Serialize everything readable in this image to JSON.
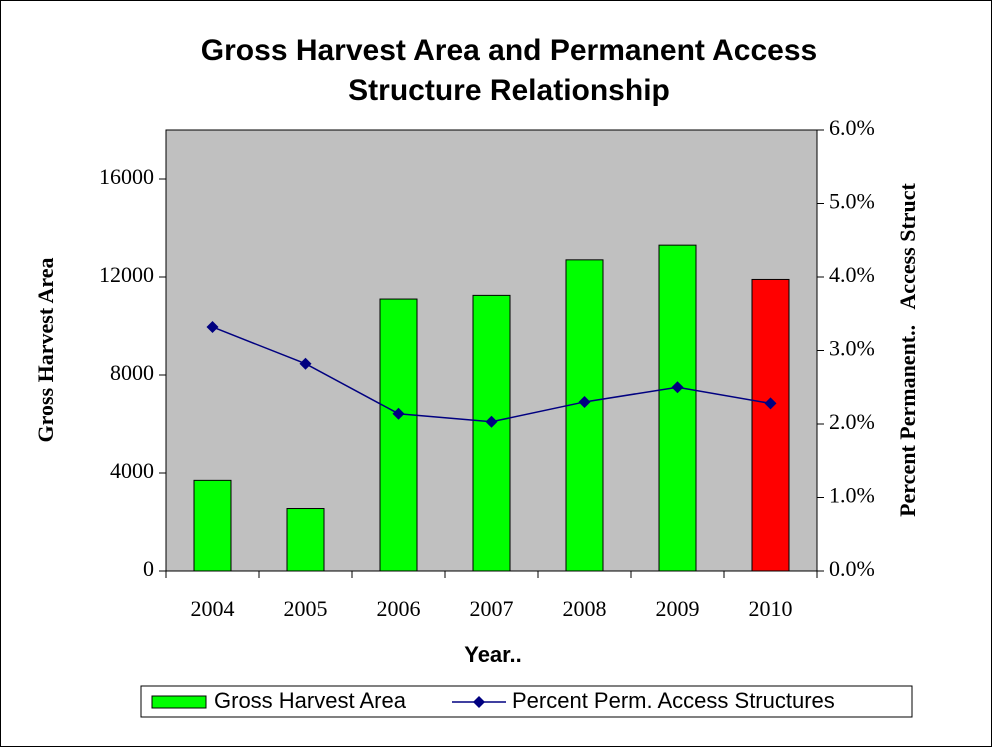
{
  "chart_data": {
    "type": "bar-line",
    "title": [
      "Gross Harvest Area and Permanent Access",
      "Structure Relationship"
    ],
    "x_label": "Year..",
    "y_label": "Gross Harvest Area",
    "y2_label": "Percent Permanent..   Access Struct",
    "categories": [
      "2004",
      "2005",
      "2006",
      "2007",
      "2008",
      "2009",
      "2010"
    ],
    "series": [
      {
        "name": "Gross Harvest Area",
        "type": "bar",
        "axis": "y",
        "colors": [
          "#00ff00",
          "#00ff00",
          "#00ff00",
          "#00ff00",
          "#00ff00",
          "#00ff00",
          "#ff0000"
        ],
        "values": [
          3700,
          2550,
          11100,
          11250,
          12700,
          13300,
          11900
        ]
      },
      {
        "name": "Percent Perm. Access Structures",
        "type": "line",
        "axis": "y2",
        "color": "#000080",
        "values": [
          3.32,
          2.82,
          2.14,
          2.03,
          2.3,
          2.5,
          2.28
        ]
      }
    ],
    "ylim": [
      0,
      18000
    ],
    "yticks": [
      0,
      4000,
      8000,
      12000,
      16000
    ],
    "y2lim": [
      0,
      6
    ],
    "y2ticks": [
      {
        "value": 0,
        "label": "0.0%"
      },
      {
        "value": 1,
        "label": "1.0%"
      },
      {
        "value": 2,
        "label": "2.0%"
      },
      {
        "value": 3,
        "label": "3.0%"
      },
      {
        "value": 4,
        "label": "4.0%"
      },
      {
        "value": 5,
        "label": "5.0%"
      },
      {
        "value": 6,
        "label": "6.0%"
      }
    ],
    "plot_background": "#c0c0c0",
    "legend": "bottom"
  }
}
